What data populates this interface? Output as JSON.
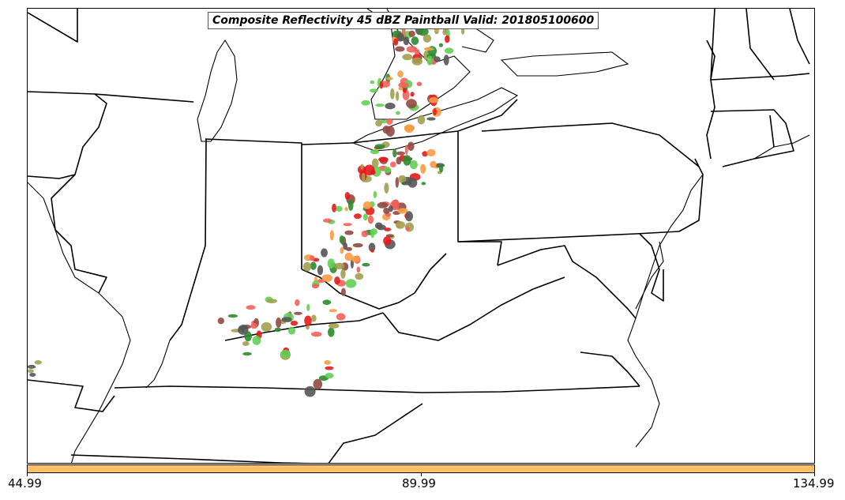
{
  "map": {
    "title": "Composite Reflectivity 45 dBZ Paintball Valid: 201805100600",
    "land_color": "#ffffff",
    "boundary_color": "#000000"
  },
  "colorbar": {
    "color": "#fdc066",
    "ticks": [
      "44.99",
      "89.99",
      "134.99"
    ]
  },
  "paintball_colors": [
    "#f4605a",
    "#f89b45",
    "#62d052",
    "#a0a050",
    "#8f4a42",
    "#555555",
    "#2e8b2e",
    "#e41a1c"
  ]
}
